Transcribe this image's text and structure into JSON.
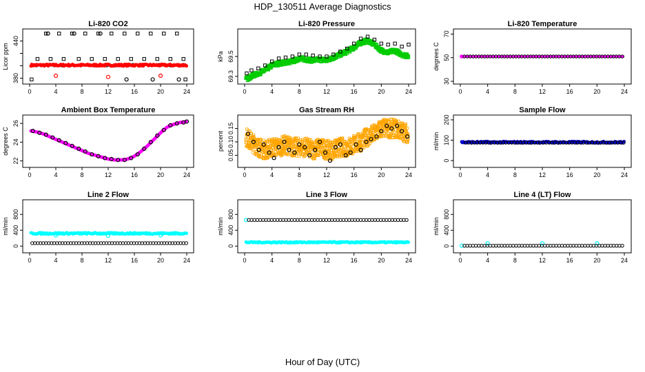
{
  "page": {
    "title": "HDP_130511  Average Diagnostics",
    "xlabel": "Hour of Day (UTC)"
  },
  "colors": {
    "black": "#000000",
    "red": "#ff0000",
    "green": "#00cc00",
    "magenta": "#ff00ff",
    "orange": "#ffa500",
    "blue": "#0000cc",
    "cyan": "#00ffff"
  },
  "chart_data": [
    {
      "id": "co2",
      "type": "scatter",
      "title": "Li-820 CO2",
      "ylabel": "Licor ppm",
      "xlim": [
        0,
        24
      ],
      "ylim": [
        375,
        455
      ],
      "xticks": [
        0,
        4,
        8,
        12,
        16,
        20,
        24
      ],
      "yticks": [
        380,
        400,
        420,
        440
      ],
      "yticklabels": [
        "380",
        "",
        "",
        "440"
      ],
      "series": [
        {
          "style": "open-square",
          "color": "#000000",
          "x": [
            0.3,
            2.5,
            4.5,
            6.5,
            8.5,
            10.5,
            12.5,
            14.5,
            16.5,
            18.5,
            20.5,
            22.5,
            23.8,
            1.2,
            3.2,
            5.2,
            7.5,
            9.5,
            11.5,
            13.5,
            15.5,
            17.5,
            19.5,
            21.5,
            23.5
          ],
          "y": [
            378,
            452,
            452,
            452,
            452,
            452,
            452,
            452,
            452,
            452,
            452,
            452,
            378,
            411,
            411,
            411,
            411,
            411,
            411,
            411,
            411,
            411,
            411,
            411,
            411
          ]
        },
        {
          "style": "open-circle",
          "color": "#000000",
          "x": [
            1.0,
            3.8,
            5.0,
            7.8,
            9.8,
            11.8,
            13.2,
            15.8,
            17.0,
            19.8,
            21.5,
            23.5,
            2.8,
            6.8,
            10.8,
            14.8,
            18.8,
            22.8
          ],
          "y": [
            401,
            401,
            401,
            401,
            401,
            401,
            401,
            401,
            401,
            401,
            401,
            401,
            452,
            452,
            452,
            378,
            378,
            378
          ]
        },
        {
          "style": "filled-band",
          "color": "#ff0000",
          "xmin": 0.2,
          "xmax": 24.0,
          "y": 401,
          "spread": 1.5
        },
        {
          "style": "open-circle",
          "color": "#ff0000",
          "x": [
            4.0,
            12.0,
            20.0
          ],
          "y": [
            384,
            382,
            384
          ]
        }
      ]
    },
    {
      "id": "pressure",
      "type": "scatter",
      "title": "Li-820 Pressure",
      "ylabel": "kPa",
      "xlim": [
        0,
        24
      ],
      "ylim": [
        69.25,
        69.75
      ],
      "xticks": [
        0,
        4,
        8,
        12,
        16,
        20,
        24
      ],
      "yticks": [
        69.3,
        69.5
      ],
      "yticklabels": [
        "69.3",
        "69.5"
      ],
      "series": [
        {
          "style": "filled-band",
          "color": "#00cc00",
          "x": [
            0.2,
            1,
            2,
            3,
            4,
            5,
            6,
            7,
            8,
            9,
            10,
            11,
            12,
            13,
            14,
            15,
            16,
            17,
            18,
            19,
            20,
            21,
            22,
            23,
            24
          ],
          "y": [
            69.27,
            69.3,
            69.33,
            69.36,
            69.41,
            69.43,
            69.44,
            69.45,
            69.48,
            69.47,
            69.46,
            69.47,
            69.46,
            69.49,
            69.52,
            69.55,
            69.59,
            69.64,
            69.66,
            69.62,
            69.56,
            69.54,
            69.56,
            69.52,
            69.5
          ],
          "spread": 0.02
        },
        {
          "style": "open-square",
          "color": "#000000",
          "x": [
            0.3,
            1,
            2,
            3,
            4,
            5,
            6,
            7,
            8,
            9,
            10,
            11,
            12,
            13,
            14,
            15,
            16,
            17,
            18,
            19,
            20,
            21,
            22,
            23,
            24
          ],
          "y": [
            69.33,
            69.36,
            69.38,
            69.41,
            69.45,
            69.48,
            69.49,
            69.5,
            69.52,
            69.52,
            69.51,
            69.5,
            69.5,
            69.52,
            69.55,
            69.58,
            69.63,
            69.68,
            69.7,
            69.67,
            69.63,
            69.62,
            69.63,
            69.6,
            69.62
          ]
        }
      ]
    },
    {
      "id": "licor_temp",
      "type": "scatter",
      "title": "Li-820 Temperature",
      "ylabel": "degrees C",
      "xlim": [
        0,
        24
      ],
      "ylim": [
        30,
        72
      ],
      "xticks": [
        0,
        4,
        8,
        12,
        16,
        20,
        24
      ],
      "yticks": [
        30,
        50,
        70
      ],
      "yticklabels": [
        "30",
        "50",
        "70"
      ],
      "series": [
        {
          "style": "line-points",
          "color": "#ff00ff",
          "xmin": 0.2,
          "xmax": 24.0,
          "y": 51.0
        },
        {
          "style": "open-circle-line",
          "color": "#000000",
          "xmin": 0.6,
          "xmax": 24.0,
          "y": 51.0
        }
      ]
    },
    {
      "id": "ambient_temp",
      "type": "scatter",
      "title": "Ambient Box Temperature",
      "ylabel": "degrees C",
      "xlim": [
        0,
        24
      ],
      "ylim": [
        21.6,
        26.6
      ],
      "xticks": [
        0,
        4,
        8,
        12,
        16,
        20,
        24
      ],
      "yticks": [
        22,
        24,
        26
      ],
      "yticklabels": [
        "22",
        "24",
        "26"
      ],
      "series": [
        {
          "style": "curve",
          "color": "#ff00ff",
          "x": [
            0.2,
            1,
            2,
            3,
            4,
            5,
            6,
            7,
            8,
            9,
            10,
            11,
            12,
            13,
            14,
            15,
            16,
            17,
            18,
            19,
            20,
            21,
            22,
            23,
            24
          ],
          "y": [
            25.2,
            25.1,
            24.9,
            24.6,
            24.3,
            24.0,
            23.7,
            23.4,
            23.1,
            22.8,
            22.6,
            22.4,
            22.2,
            22.1,
            22.1,
            22.2,
            22.5,
            23.0,
            23.6,
            24.3,
            25.0,
            25.6,
            25.9,
            26.1,
            26.2
          ]
        },
        {
          "style": "open-circle",
          "color": "#000000",
          "x": [
            0.5,
            1.5,
            2.5,
            3.5,
            4.5,
            5.5,
            6.5,
            7.5,
            8.5,
            9.5,
            10.5,
            11.5,
            12.5,
            13.5,
            14.5,
            15.5,
            16.5,
            17.5,
            18.5,
            19.5,
            20.5,
            21.5,
            22.5,
            23.5,
            24.0
          ],
          "y": [
            25.2,
            25.0,
            24.8,
            24.5,
            24.2,
            23.9,
            23.6,
            23.3,
            23.0,
            22.7,
            22.5,
            22.3,
            22.2,
            22.1,
            22.1,
            22.3,
            22.7,
            23.3,
            24.0,
            24.7,
            25.3,
            25.8,
            26.0,
            26.1,
            26.2
          ]
        }
      ]
    },
    {
      "id": "rh",
      "type": "scatter",
      "title": "Gas Stream RH",
      "ylabel": "percent",
      "xlim": [
        0,
        24
      ],
      "ylim": [
        0.015,
        0.19
      ],
      "xticks": [
        0,
        4,
        8,
        12,
        16,
        20,
        24
      ],
      "yticks": [
        0.05,
        0.1,
        0.15
      ],
      "yticklabels": [
        "0.05",
        "0.10",
        "0.15"
      ],
      "series": [
        {
          "style": "noisy-band",
          "color": "#ffa500",
          "x": [
            0.2,
            1,
            2,
            3,
            4,
            5,
            6,
            7,
            8,
            9,
            10,
            11,
            12,
            13,
            14,
            15,
            16,
            17,
            18,
            19,
            20,
            21,
            22,
            23,
            24
          ],
          "y": [
            0.12,
            0.1,
            0.08,
            0.07,
            0.08,
            0.08,
            0.09,
            0.08,
            0.08,
            0.08,
            0.07,
            0.08,
            0.07,
            0.07,
            0.08,
            0.08,
            0.09,
            0.1,
            0.12,
            0.13,
            0.15,
            0.15,
            0.15,
            0.14,
            0.13
          ],
          "spread": 0.035
        },
        {
          "style": "open-circle",
          "color": "#000000",
          "x": [
            0.5,
            1.3,
            2.1,
            2.8,
            3.6,
            4.3,
            5.0,
            5.8,
            6.5,
            7.3,
            8.0,
            8.8,
            9.5,
            10.3,
            11.0,
            11.8,
            12.5,
            13.3,
            14.0,
            14.8,
            15.5,
            16.3,
            17.0,
            17.8,
            18.5,
            19.3,
            20.0,
            20.8,
            21.5,
            22.3,
            23.0,
            23.8
          ],
          "y": [
            0.13,
            0.1,
            0.07,
            0.09,
            0.06,
            0.04,
            0.08,
            0.1,
            0.07,
            0.06,
            0.09,
            0.08,
            0.05,
            0.07,
            0.1,
            0.06,
            0.03,
            0.08,
            0.09,
            0.05,
            0.06,
            0.09,
            0.07,
            0.1,
            0.11,
            0.12,
            0.14,
            0.16,
            0.15,
            0.16,
            0.14,
            0.12
          ]
        }
      ]
    },
    {
      "id": "sample_flow",
      "type": "scatter",
      "title": "Sample Flow",
      "ylabel": "ml/min",
      "xlim": [
        0,
        24
      ],
      "ylim": [
        -20,
        210
      ],
      "xticks": [
        0,
        4,
        8,
        12,
        16,
        20,
        24
      ],
      "yticks": [
        0,
        100,
        200
      ],
      "yticklabels": [
        "0",
        "100",
        "200"
      ],
      "series": [
        {
          "style": "filled-band",
          "color": "#0000cc",
          "xmin": 0.2,
          "xmax": 24.0,
          "y": 90,
          "spread": 4
        },
        {
          "style": "open-circle-line",
          "color": "#000000",
          "xmin": 0.8,
          "xmax": 24.0,
          "y": 88
        }
      ]
    },
    {
      "id": "line2",
      "type": "scatter",
      "title": "Line 2 Flow",
      "ylabel": "ml/min",
      "xlim": [
        0,
        24
      ],
      "ylim": [
        -100,
        1100
      ],
      "xticks": [
        0,
        4,
        8,
        12,
        16,
        20,
        24
      ],
      "yticks": [
        0,
        400,
        800
      ],
      "yticklabels": [
        "0",
        "400",
        "800"
      ],
      "series": [
        {
          "style": "filled-band",
          "color": "#00ffff",
          "xmin": 0.2,
          "xmax": 24.0,
          "y": 320,
          "spread": 20
        },
        {
          "style": "open-circle",
          "color": "#00ffff",
          "x": [
            4.0,
            12.0,
            20.0
          ],
          "y": [
            270,
            260,
            270
          ]
        },
        {
          "style": "open-circle-line",
          "color": "#000000",
          "xmin": 0.4,
          "xmax": 24.0,
          "y": 75
        }
      ]
    },
    {
      "id": "line3",
      "type": "scatter",
      "title": "Line 3 Flow",
      "ylabel": "ml/min",
      "xlim": [
        0,
        24
      ],
      "ylim": [
        -100,
        1100
      ],
      "xticks": [
        0,
        4,
        8,
        12,
        16,
        20,
        24
      ],
      "yticks": [
        0,
        400,
        800
      ],
      "yticklabels": [
        "0",
        "400",
        "800"
      ],
      "series": [
        {
          "style": "filled-band",
          "color": "#00ffff",
          "xmin": 0.2,
          "xmax": 24.0,
          "y": 95,
          "spread": 15
        },
        {
          "style": "open-circle",
          "color": "#00ffff",
          "x": [
            0.2
          ],
          "y": [
            660
          ]
        },
        {
          "style": "open-circle-line",
          "color": "#000000",
          "xmin": 0.6,
          "xmax": 24.0,
          "y": 660
        }
      ]
    },
    {
      "id": "line4",
      "type": "scatter",
      "title": "Line 4 (LT) Flow",
      "ylabel": "ml/min",
      "xlim": [
        0,
        24
      ],
      "ylim": [
        -100,
        1100
      ],
      "xticks": [
        0,
        4,
        8,
        12,
        16,
        20,
        24
      ],
      "yticks": [
        0,
        400,
        800
      ],
      "yticklabels": [
        "0",
        "400",
        "800"
      ],
      "series": [
        {
          "style": "open-circle",
          "color": "#00ffff",
          "x": [
            0.2,
            4.0,
            12.0,
            20.0
          ],
          "y": [
            10,
            70,
            70,
            70
          ]
        },
        {
          "style": "open-circle-line",
          "color": "#000000",
          "xmin": 0.6,
          "xmax": 24.0,
          "y": 10
        }
      ]
    }
  ]
}
